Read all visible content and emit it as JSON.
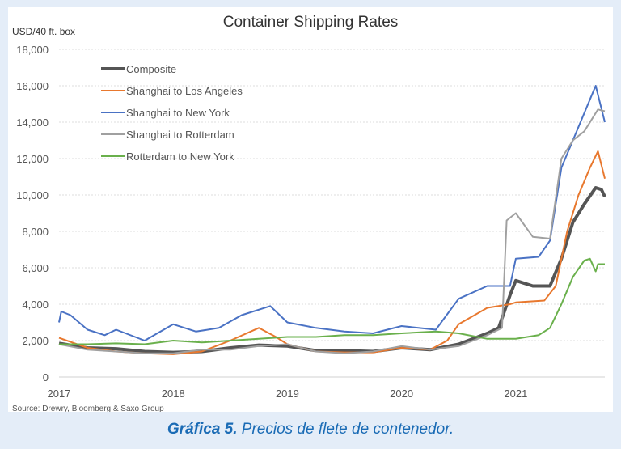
{
  "caption": {
    "label": "Gráfica 5.",
    "text": " Precios de flete de contenedor."
  },
  "chart_data": {
    "type": "line",
    "title": "Container Shipping Rates",
    "ylabel": "USD/40 ft. box",
    "source": "Source: Drewry, Bloomberg & Saxo Group",
    "ylim": [
      0,
      18000
    ],
    "xlim": [
      2017,
      2021.78
    ],
    "yticks": [
      0,
      2000,
      4000,
      6000,
      8000,
      10000,
      12000,
      14000,
      16000,
      18000
    ],
    "ytick_labels": [
      "0",
      "2,000",
      "4,000",
      "6,000",
      "8,000",
      "10,000",
      "12,000",
      "14,000",
      "16,000",
      "18,000"
    ],
    "xticks": [
      2017,
      2018,
      2019,
      2020,
      2021
    ],
    "xtick_labels": [
      "2017",
      "2018",
      "2019",
      "2020",
      "2021"
    ],
    "grid": true,
    "legend_position": "top-left",
    "series": [
      {
        "name": "Composite",
        "color": "#555555",
        "width": 4,
        "x": [
          2017,
          2017.25,
          2017.5,
          2017.75,
          2018,
          2018.25,
          2018.5,
          2018.75,
          2019,
          2019.25,
          2019.5,
          2019.75,
          2020,
          2020.25,
          2020.5,
          2020.75,
          2020.85,
          2020.95,
          2021.0,
          2021.15,
          2021.3,
          2021.4,
          2021.5,
          2021.6,
          2021.7,
          2021.75,
          2021.78
        ],
        "y": [
          1850,
          1600,
          1550,
          1400,
          1350,
          1400,
          1600,
          1750,
          1700,
          1450,
          1450,
          1400,
          1600,
          1500,
          1800,
          2400,
          2700,
          4500,
          5300,
          5000,
          5000,
          6500,
          8500,
          9500,
          10400,
          10300,
          9900
        ]
      },
      {
        "name": "Shanghai to Los Angeles",
        "color": "#e8782e",
        "width": 2,
        "x": [
          2017,
          2017.25,
          2017.5,
          2017.75,
          2018,
          2018.25,
          2018.5,
          2018.75,
          2018.9,
          2019,
          2019.25,
          2019.5,
          2019.75,
          2020,
          2020.25,
          2020.4,
          2020.5,
          2020.75,
          2020.95,
          2021.0,
          2021.25,
          2021.35,
          2021.45,
          2021.55,
          2021.65,
          2021.72,
          2021.78
        ],
        "y": [
          2150,
          1600,
          1400,
          1300,
          1250,
          1400,
          2000,
          2700,
          2200,
          1800,
          1400,
          1350,
          1350,
          1600,
          1500,
          2000,
          2900,
          3800,
          4000,
          4100,
          4200,
          5000,
          8000,
          10000,
          11500,
          12400,
          10900
        ]
      },
      {
        "name": "Shanghai to New York",
        "color": "#4a72c4",
        "width": 2,
        "x": [
          2017,
          2017.02,
          2017.1,
          2017.25,
          2017.4,
          2017.5,
          2017.75,
          2018,
          2018.2,
          2018.4,
          2018.6,
          2018.85,
          2019,
          2019.25,
          2019.5,
          2019.75,
          2020,
          2020.3,
          2020.5,
          2020.75,
          2020.95,
          2021.0,
          2021.2,
          2021.3,
          2021.4,
          2021.5,
          2021.6,
          2021.7,
          2021.78
        ],
        "y": [
          3000,
          3600,
          3400,
          2600,
          2300,
          2600,
          2000,
          2900,
          2500,
          2700,
          3400,
          3900,
          3000,
          2700,
          2500,
          2400,
          2800,
          2600,
          4300,
          5000,
          5000,
          6500,
          6600,
          7500,
          11500,
          13000,
          14500,
          16000,
          14000
        ]
      },
      {
        "name": "Shanghai to Rotterdam",
        "color": "#a0a0a0",
        "width": 2,
        "x": [
          2017,
          2017.25,
          2017.5,
          2017.75,
          2018,
          2018.25,
          2018.5,
          2018.75,
          2019,
          2019.25,
          2019.5,
          2019.75,
          2020,
          2020.25,
          2020.5,
          2020.75,
          2020.88,
          2020.92,
          2021.0,
          2021.15,
          2021.3,
          2021.4,
          2021.5,
          2021.6,
          2021.72,
          2021.78
        ],
        "y": [
          1800,
          1500,
          1400,
          1300,
          1300,
          1500,
          1500,
          1700,
          1800,
          1400,
          1300,
          1400,
          1700,
          1500,
          1700,
          2300,
          2700,
          8600,
          9000,
          7700,
          7600,
          12000,
          13000,
          13500,
          14700,
          14600
        ]
      },
      {
        "name": "Rotterdam to New York",
        "color": "#6ab04c",
        "width": 2,
        "x": [
          2017,
          2017.25,
          2017.5,
          2017.75,
          2018,
          2018.25,
          2018.5,
          2018.75,
          2019,
          2019.25,
          2019.5,
          2019.75,
          2020,
          2020.3,
          2020.5,
          2020.75,
          2021.0,
          2021.2,
          2021.3,
          2021.4,
          2021.5,
          2021.6,
          2021.65,
          2021.7,
          2021.72,
          2021.78
        ],
        "y": [
          1800,
          1800,
          1850,
          1800,
          2000,
          1900,
          2000,
          2100,
          2200,
          2200,
          2300,
          2300,
          2400,
          2500,
          2400,
          2100,
          2100,
          2300,
          2700,
          4000,
          5500,
          6400,
          6500,
          5800,
          6200,
          6200
        ]
      }
    ]
  }
}
